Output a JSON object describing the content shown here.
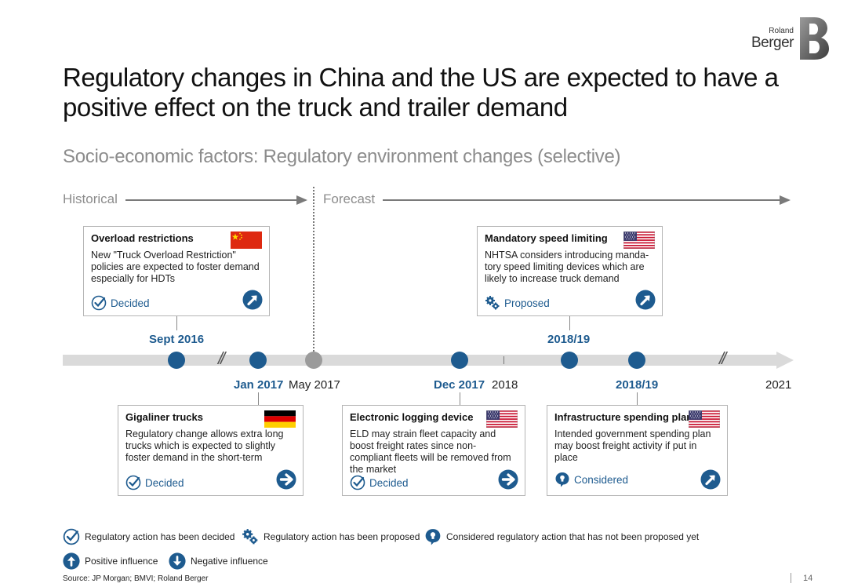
{
  "logo": {
    "line1": "Roland",
    "line2": "Berger"
  },
  "title": "Regulatory changes in China and the US are expected to have a positive effect on the truck and trailer demand",
  "subtitle": "Socio-economic factors: Regulatory environment changes (selective)",
  "phases": {
    "historical": "Historical",
    "forecast": "Forecast"
  },
  "timeline": {
    "labels": {
      "sept2016": "Sept 2016",
      "jan2017": "Jan 2017",
      "may2017": "May 2017",
      "dec2017": "Dec 2017",
      "y2018": "2018",
      "y2018_19_top": "2018/19",
      "y2018_19_bottom": "2018/19",
      "y2021": "2021"
    }
  },
  "cards": {
    "overload": {
      "title": "Overload restrictions",
      "body": "New \"Truck Overload Restriction\" policies are expected to foster demand especially for HDTs",
      "status": "Decided",
      "flag": "china-flag-icon",
      "influence": "positive"
    },
    "speed": {
      "title": "Mandatory speed limiting",
      "body": "NHTSA considers introducing manda-tory speed limiting devices which are likely to increase truck demand",
      "status": "Proposed",
      "flag": "us-flag-icon",
      "influence": "positive"
    },
    "gigaliner": {
      "title": "Gigaliner trucks",
      "body": "Regulatory change allows extra long trucks which is expected to slightly foster demand in the short-term",
      "status": "Decided",
      "flag": "germany-flag-icon",
      "influence": "neutral"
    },
    "eld": {
      "title": "Electronic logging device",
      "body": "ELD may strain fleet capacity and boost freight rates since non-compliant fleets will be removed from the market",
      "status": "Decided",
      "flag": "us-flag-icon",
      "influence": "neutral"
    },
    "infra": {
      "title": "Infrastructure spending plan",
      "body": "Intended government spending plan may boost freight activity if put in place",
      "status": "Considered",
      "flag": "us-flag-icon",
      "influence": "positive"
    }
  },
  "legend": {
    "decided": "Regulatory action has been decided",
    "proposed": "Regulatory action has been proposed",
    "considered": "Considered regulatory action that has not been proposed yet",
    "positive": "Positive influence",
    "negative": "Negative influence"
  },
  "colors": {
    "accent": "#1e5b8f",
    "timeline": "#dadada",
    "grey_text": "#8c8c8c"
  },
  "source": "Source: JP Morgan; BMVI; Roland Berger",
  "page_number": "14"
}
